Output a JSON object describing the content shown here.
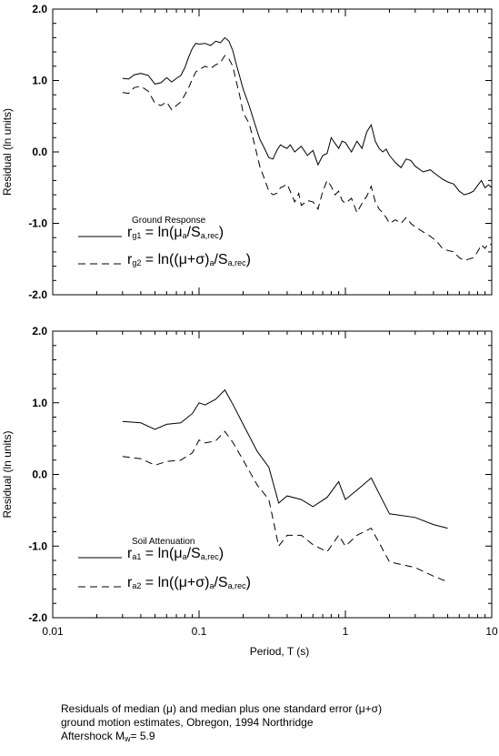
{
  "chart_data": [
    {
      "type": "line",
      "panel": "top",
      "xscale": "log",
      "xlim": [
        0.01,
        10
      ],
      "ylim": [
        -2.0,
        2.0
      ],
      "ylabel": "Residual (ln units)",
      "xlabel": "",
      "yticks": [
        "2.0",
        "1.0",
        "0.0",
        "-1.0",
        "-2.0"
      ],
      "legend_title": "Ground Response",
      "legend": [
        {
          "name_main": "r",
          "name_sub": "g1",
          "equation_html": " = ln(&mu;<sub>a</sub>/S<sub>a,rec</sub>)",
          "style": "solid"
        },
        {
          "name_main": "r",
          "name_sub": "g2",
          "equation_html": " = ln((&mu;+&sigma;)<sub>a</sub>/S<sub>a,rec</sub>)",
          "style": "dashed"
        }
      ],
      "series": [
        {
          "name": "rg1",
          "style": "solid",
          "x": [
            0.03,
            0.033,
            0.036,
            0.04,
            0.045,
            0.05,
            0.055,
            0.06,
            0.065,
            0.07,
            0.075,
            0.08,
            0.085,
            0.09,
            0.095,
            0.1,
            0.11,
            0.12,
            0.13,
            0.14,
            0.15,
            0.16,
            0.17,
            0.18,
            0.19,
            0.2,
            0.22,
            0.24,
            0.26,
            0.28,
            0.3,
            0.32,
            0.34,
            0.36,
            0.38,
            0.4,
            0.42,
            0.45,
            0.48,
            0.5,
            0.55,
            0.6,
            0.65,
            0.7,
            0.75,
            0.8,
            0.85,
            0.9,
            0.95,
            1.0,
            1.1,
            1.2,
            1.3,
            1.4,
            1.5,
            1.6,
            1.7,
            1.8,
            1.9,
            2.0,
            2.2,
            2.4,
            2.6,
            2.8,
            3.0,
            3.4,
            3.8,
            4.2,
            4.6,
            5.0,
            5.5,
            6.0,
            6.5,
            7.0,
            7.5,
            8.0,
            8.5,
            9.0,
            9.5,
            10.0
          ],
          "y": [
            1.03,
            1.02,
            1.08,
            1.1,
            1.07,
            0.95,
            0.97,
            1.04,
            0.98,
            1.03,
            1.07,
            1.18,
            1.33,
            1.45,
            1.52,
            1.51,
            1.52,
            1.49,
            1.55,
            1.53,
            1.6,
            1.55,
            1.42,
            1.22,
            1.05,
            0.88,
            0.65,
            0.4,
            0.18,
            0.05,
            -0.08,
            -0.1,
            0.02,
            0.1,
            0.07,
            0.05,
            0.1,
            0.0,
            0.05,
            0.08,
            -0.05,
            0.02,
            -0.18,
            -0.05,
            -0.02,
            0.2,
            0.12,
            0.05,
            0.15,
            0.13,
            0.0,
            0.15,
            0.05,
            0.28,
            0.38,
            0.15,
            0.05,
            0.0,
            0.04,
            -0.05,
            -0.15,
            -0.22,
            -0.1,
            -0.12,
            -0.2,
            -0.28,
            -0.25,
            -0.32,
            -0.38,
            -0.42,
            -0.45,
            -0.55,
            -0.6,
            -0.58,
            -0.55,
            -0.47,
            -0.4,
            -0.5,
            -0.46,
            -0.5
          ]
        },
        {
          "name": "rg2",
          "style": "dashed",
          "x": [
            0.03,
            0.033,
            0.036,
            0.04,
            0.045,
            0.05,
            0.055,
            0.06,
            0.065,
            0.07,
            0.075,
            0.08,
            0.085,
            0.09,
            0.095,
            0.1,
            0.11,
            0.12,
            0.13,
            0.14,
            0.15,
            0.16,
            0.17,
            0.18,
            0.19,
            0.2,
            0.22,
            0.24,
            0.26,
            0.28,
            0.3,
            0.32,
            0.34,
            0.36,
            0.38,
            0.4,
            0.42,
            0.45,
            0.48,
            0.5,
            0.55,
            0.6,
            0.65,
            0.7,
            0.75,
            0.8,
            0.85,
            0.9,
            0.95,
            1.0,
            1.1,
            1.2,
            1.3,
            1.4,
            1.5,
            1.6,
            1.7,
            1.8,
            1.9,
            2.0,
            2.2,
            2.4,
            2.6,
            2.8,
            3.0,
            3.4,
            3.8,
            4.2,
            4.6,
            5.0,
            5.5,
            6.0,
            6.5,
            7.0,
            7.5,
            8.0,
            8.5,
            9.0,
            9.5,
            10.0
          ],
          "y": [
            0.83,
            0.82,
            0.9,
            0.92,
            0.85,
            0.68,
            0.65,
            0.7,
            0.59,
            0.65,
            0.7,
            0.8,
            0.9,
            1.02,
            1.12,
            1.15,
            1.2,
            1.17,
            1.22,
            1.25,
            1.35,
            1.3,
            1.2,
            0.98,
            0.78,
            0.55,
            0.4,
            0.1,
            -0.2,
            -0.38,
            -0.55,
            -0.6,
            -0.58,
            -0.5,
            -0.48,
            -0.45,
            -0.55,
            -0.7,
            -0.58,
            -0.75,
            -0.68,
            -0.7,
            -0.8,
            -0.55,
            -0.4,
            -0.48,
            -0.6,
            -0.55,
            -0.68,
            -0.72,
            -0.65,
            -0.85,
            -0.72,
            -0.62,
            -0.48,
            -0.7,
            -0.8,
            -0.85,
            -0.92,
            -1.0,
            -0.95,
            -1.0,
            -0.92,
            -1.0,
            -1.05,
            -1.12,
            -1.18,
            -1.25,
            -1.35,
            -1.38,
            -1.4,
            -1.48,
            -1.52,
            -1.5,
            -1.48,
            -1.4,
            -1.3,
            -1.35,
            -1.28,
            -1.3
          ]
        }
      ]
    },
    {
      "type": "line",
      "panel": "bottom",
      "xscale": "log",
      "xlim": [
        0.01,
        10
      ],
      "ylim": [
        -2.0,
        2.0
      ],
      "ylabel": "Residual (ln units)",
      "xlabel": "Period, T (s)",
      "xticks": [
        "0.01",
        "0.1",
        "1",
        "10"
      ],
      "yticks": [
        "2.0",
        "1.0",
        "0.0",
        "-1.0",
        "-2.0"
      ],
      "legend_title": "Soil Attenuation",
      "legend": [
        {
          "name_main": "r",
          "name_sub": "a1",
          "equation_html": " = ln(&mu;<sub>a</sub>/S<sub>a,rec</sub>)",
          "style": "solid"
        },
        {
          "name_main": "r",
          "name_sub": "a2",
          "equation_html": " = ln((&mu;+&sigma;)<sub>a</sub>/S<sub>a,rec</sub>)",
          "style": "dashed"
        }
      ],
      "series": [
        {
          "name": "ra1",
          "style": "solid",
          "x": [
            0.03,
            0.04,
            0.05,
            0.06,
            0.075,
            0.09,
            0.1,
            0.11,
            0.13,
            0.15,
            0.17,
            0.2,
            0.25,
            0.3,
            0.35,
            0.4,
            0.5,
            0.6,
            0.75,
            0.9,
            1.0,
            1.2,
            1.5,
            2.0,
            3.0,
            4.0,
            5.0
          ],
          "y": [
            0.74,
            0.72,
            0.63,
            0.7,
            0.72,
            0.85,
            1.0,
            0.97,
            1.05,
            1.18,
            0.98,
            0.7,
            0.32,
            0.1,
            -0.4,
            -0.3,
            -0.35,
            -0.45,
            -0.32,
            -0.1,
            -0.35,
            -0.22,
            -0.05,
            -0.55,
            -0.6,
            -0.7,
            -0.75
          ]
        },
        {
          "name": "ra2",
          "style": "dashed",
          "x": [
            0.03,
            0.04,
            0.05,
            0.06,
            0.075,
            0.09,
            0.1,
            0.11,
            0.13,
            0.15,
            0.17,
            0.2,
            0.25,
            0.3,
            0.35,
            0.4,
            0.5,
            0.6,
            0.75,
            0.9,
            1.0,
            1.2,
            1.5,
            2.0,
            3.0,
            4.0,
            5.0
          ],
          "y": [
            0.25,
            0.22,
            0.13,
            0.18,
            0.2,
            0.3,
            0.48,
            0.44,
            0.47,
            0.6,
            0.45,
            0.2,
            -0.15,
            -0.35,
            -1.0,
            -0.85,
            -0.85,
            -0.98,
            -1.08,
            -0.85,
            -1.0,
            -0.85,
            -0.75,
            -1.22,
            -1.3,
            -1.42,
            -1.5
          ]
        }
      ]
    }
  ],
  "caption": {
    "line1_html": "Residuals of median (&mu;) and median plus one standard error (&mu;+&sigma;)",
    "line2": "ground motion estimates, Obregon, 1994 Northridge",
    "line3_main": "Aftershock M",
    "line3_sub": "w",
    "line3_tail": "= 5.9"
  }
}
